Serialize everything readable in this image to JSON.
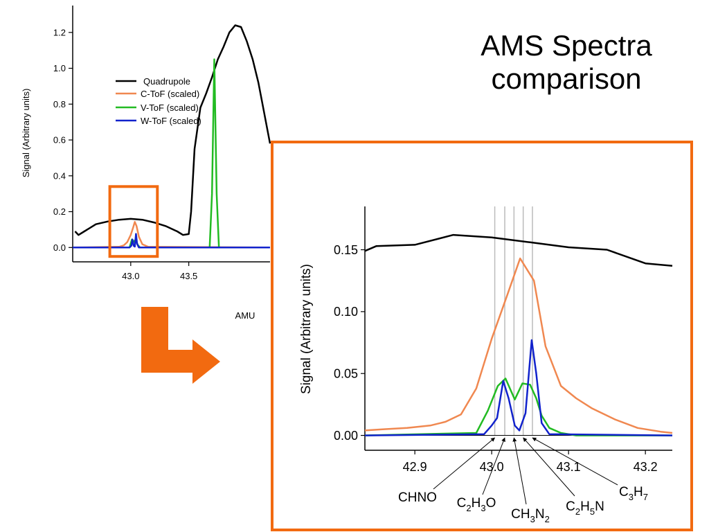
{
  "slide": {
    "title_line1": "AMS Spectra",
    "title_line2": "comparison"
  },
  "colors": {
    "quadrupole": "#000000",
    "c_tof": "#f08850",
    "v_tof": "#22bb22",
    "w_tof": "#1122cc",
    "highlight": "#f26a10",
    "marker_lines": "#bbbbbb"
  },
  "chart_data": [
    {
      "type": "line",
      "title": "",
      "xlabel": "AMU",
      "ylabel": "Signal (Arbitrary units)",
      "xlim": [
        42.5,
        44.2
      ],
      "ylim": [
        -0.08,
        1.35
      ],
      "xticks": [
        "43.0",
        "43.5"
      ],
      "xtick_values": [
        43.0,
        43.5
      ],
      "yticks": [
        "0.0",
        "0.2",
        "0.4",
        "0.6",
        "0.8",
        "1.0",
        "1.2"
      ],
      "ytick_values": [
        0.0,
        0.2,
        0.4,
        0.6,
        0.8,
        1.0,
        1.2
      ],
      "legend_position": "upper-left",
      "highlight_region": {
        "x": [
          42.82,
          43.23
        ],
        "y": [
          -0.05,
          0.34
        ]
      },
      "series": [
        {
          "name": "Quadrupole",
          "key": "quadrupole",
          "x": [
            42.52,
            42.55,
            42.6,
            42.7,
            42.8,
            42.9,
            43.0,
            43.1,
            43.2,
            43.3,
            43.4,
            43.45,
            43.5,
            43.52,
            43.55,
            43.6,
            43.65,
            43.7,
            43.75,
            43.8,
            43.85,
            43.9,
            43.95,
            44.0,
            44.05,
            44.1,
            44.15,
            44.2
          ],
          "y": [
            0.09,
            0.07,
            0.09,
            0.13,
            0.145,
            0.155,
            0.16,
            0.155,
            0.14,
            0.12,
            0.09,
            0.07,
            0.075,
            0.2,
            0.55,
            0.78,
            0.86,
            0.95,
            1.05,
            1.12,
            1.2,
            1.24,
            1.23,
            1.15,
            1.05,
            0.92,
            0.75,
            0.58
          ]
        },
        {
          "name": "C-ToF (scaled)",
          "key": "c_tof",
          "x": [
            42.5,
            42.9,
            42.94,
            42.97,
            43.0,
            43.02,
            43.035,
            43.05,
            43.07,
            43.1,
            43.15,
            44.2
          ],
          "y": [
            0.0,
            0.004,
            0.012,
            0.03,
            0.07,
            0.11,
            0.143,
            0.12,
            0.06,
            0.018,
            0.004,
            0.0
          ]
        },
        {
          "name": "V-ToF (scaled)",
          "key": "v_tof",
          "x": [
            42.5,
            42.99,
            43.01,
            43.025,
            43.035,
            43.045,
            43.06,
            43.08,
            43.68,
            43.7,
            43.72,
            43.74,
            43.76,
            44.2
          ],
          "y": [
            0.0,
            0.0,
            0.045,
            0.03,
            0.04,
            0.04,
            0.015,
            0.0,
            0.0,
            0.3,
            1.05,
            0.3,
            0.0,
            0.0
          ]
        },
        {
          "name": "W-ToF (scaled)",
          "key": "w_tof",
          "x": [
            42.5,
            42.99,
            43.005,
            43.015,
            43.025,
            43.035,
            43.045,
            43.055,
            43.07,
            44.2
          ],
          "y": [
            0.0,
            0.0,
            0.01,
            0.045,
            0.01,
            0.005,
            0.076,
            0.02,
            0.0,
            0.0
          ]
        }
      ]
    },
    {
      "type": "line",
      "title": "",
      "xlabel": "",
      "ylabel": "Signal (Arbitrary units)",
      "xlim": [
        42.835,
        43.235
      ],
      "ylim": [
        -0.012,
        0.185
      ],
      "xticks": [
        "42.9",
        "43.0",
        "43.1",
        "43.2"
      ],
      "xtick_values": [
        42.9,
        43.0,
        43.1,
        43.2
      ],
      "yticks": [
        "0.00",
        "0.05",
        "0.10",
        "0.15"
      ],
      "ytick_values": [
        0.0,
        0.05,
        0.1,
        0.15
      ],
      "grid": false,
      "marker_line_x": [
        43.004,
        43.017,
        43.029,
        43.041,
        43.053
      ],
      "annotations": [
        {
          "label": "CHNO",
          "parts": [
            {
              "t": "CHNO",
              "sub": false
            }
          ],
          "target_x": 43.004
        },
        {
          "label": "C2H3O",
          "parts": [
            {
              "t": "C",
              "sub": false
            },
            {
              "t": "2",
              "sub": true
            },
            {
              "t": "H",
              "sub": false
            },
            {
              "t": "3",
              "sub": true
            },
            {
              "t": "O",
              "sub": false
            }
          ],
          "target_x": 43.017
        },
        {
          "label": "CH3N2",
          "parts": [
            {
              "t": "CH",
              "sub": false
            },
            {
              "t": "3",
              "sub": true
            },
            {
              "t": "N",
              "sub": false
            },
            {
              "t": "2",
              "sub": true
            }
          ],
          "target_x": 43.029
        },
        {
          "label": "C2H5N",
          "parts": [
            {
              "t": "C",
              "sub": false
            },
            {
              "t": "2",
              "sub": true
            },
            {
              "t": "H",
              "sub": false
            },
            {
              "t": "5",
              "sub": true
            },
            {
              "t": "N",
              "sub": false
            }
          ],
          "target_x": 43.041
        },
        {
          "label": "C3H7",
          "parts": [
            {
              "t": "C",
              "sub": false
            },
            {
              "t": "3",
              "sub": true
            },
            {
              "t": "H",
              "sub": false
            },
            {
              "t": "7",
              "sub": true
            }
          ],
          "target_x": 43.053
        }
      ],
      "series": [
        {
          "name": "Quadrupole",
          "key": "quadrupole",
          "x": [
            42.835,
            42.85,
            42.9,
            42.95,
            43.0,
            43.05,
            43.1,
            43.15,
            43.2,
            43.235
          ],
          "y": [
            0.149,
            0.153,
            0.154,
            0.162,
            0.16,
            0.156,
            0.152,
            0.15,
            0.139,
            0.137
          ]
        },
        {
          "name": "C-ToF (scaled)",
          "key": "c_tof",
          "x": [
            42.835,
            42.86,
            42.89,
            42.92,
            42.94,
            42.96,
            42.98,
            43.0,
            43.02,
            43.037,
            43.055,
            43.07,
            43.09,
            43.11,
            43.13,
            43.16,
            43.19,
            43.22,
            43.235
          ],
          "y": [
            0.004,
            0.005,
            0.006,
            0.008,
            0.011,
            0.017,
            0.038,
            0.078,
            0.113,
            0.143,
            0.125,
            0.072,
            0.04,
            0.03,
            0.022,
            0.013,
            0.006,
            0.003,
            0.002
          ]
        },
        {
          "name": "V-ToF (scaled)",
          "key": "v_tof",
          "x": [
            42.835,
            42.98,
            42.995,
            43.008,
            43.018,
            43.03,
            43.04,
            43.05,
            43.058,
            43.065,
            43.075,
            43.09,
            43.11,
            43.235
          ],
          "y": [
            0.0,
            0.002,
            0.02,
            0.04,
            0.046,
            0.029,
            0.042,
            0.041,
            0.03,
            0.016,
            0.006,
            0.002,
            0.0,
            0.0
          ]
        },
        {
          "name": "W-ToF (scaled)",
          "key": "w_tof",
          "x": [
            42.835,
            42.99,
            43.0,
            43.007,
            43.015,
            43.022,
            43.03,
            43.036,
            43.044,
            43.052,
            43.058,
            43.065,
            43.075,
            43.235
          ],
          "y": [
            0.0,
            0.001,
            0.008,
            0.014,
            0.044,
            0.03,
            0.008,
            0.004,
            0.018,
            0.077,
            0.05,
            0.01,
            0.001,
            0.0
          ]
        }
      ]
    }
  ]
}
